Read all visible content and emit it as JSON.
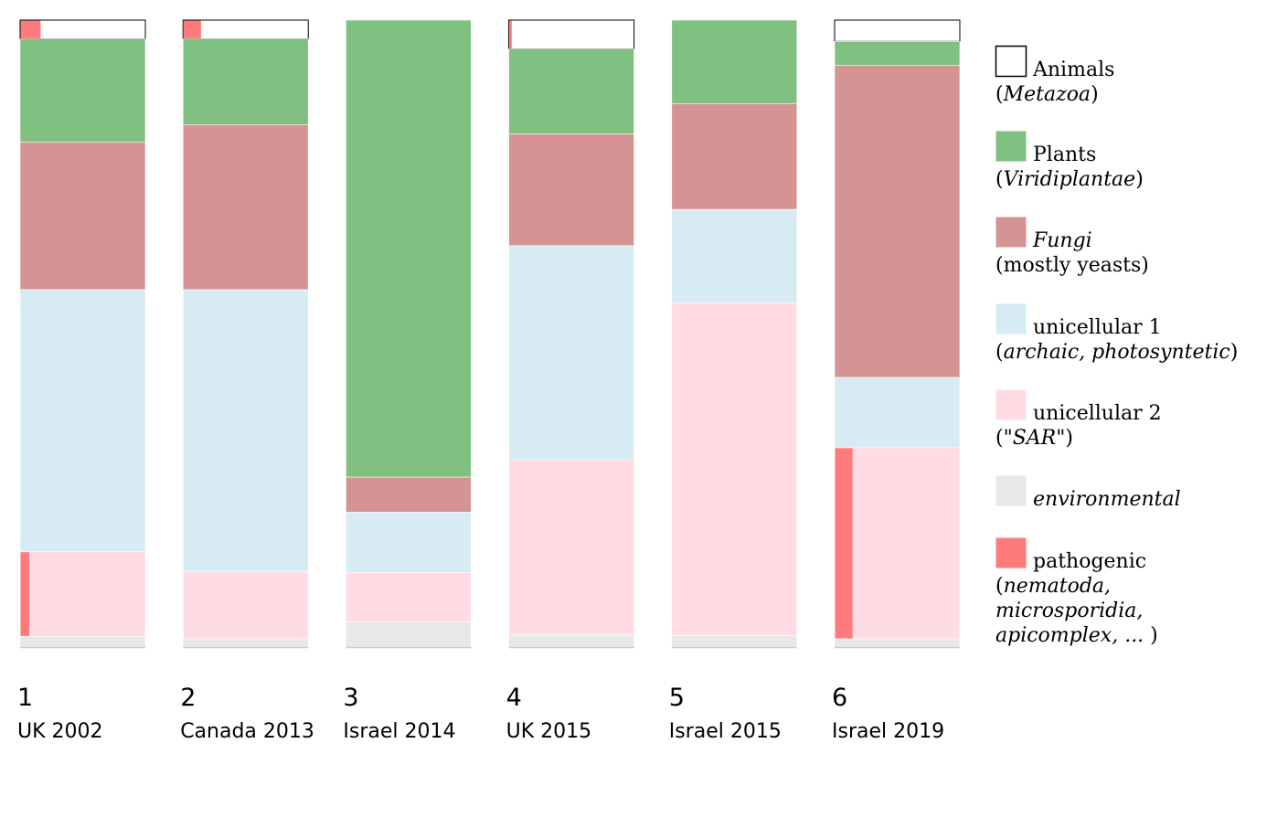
{
  "chart_data": {
    "type": "bar",
    "stacked": true,
    "normalized": true,
    "grid": false,
    "legend_position": "right",
    "title": "",
    "xlabel": "",
    "ylabel": "",
    "categories": [
      {
        "number": "1",
        "label": "UK 2002"
      },
      {
        "number": "2",
        "label": "Canada 2013"
      },
      {
        "number": "3",
        "label": "Israel 2014"
      },
      {
        "number": "4",
        "label": "UK 2015"
      },
      {
        "number": "5",
        "label": "Israel 2015"
      },
      {
        "number": "6",
        "label": "Israel 2019"
      }
    ],
    "series": [
      {
        "key": "animals",
        "color": "#ffffff",
        "values": [
          3.0,
          3.0,
          0.0,
          4.6,
          0.0,
          3.4
        ]
      },
      {
        "key": "plants",
        "color": "#80c080",
        "values": [
          16.5,
          13.7,
          72.9,
          13.5,
          13.3,
          3.8
        ]
      },
      {
        "key": "fungi",
        "color": "#d49494",
        "values": [
          23.5,
          26.4,
          5.6,
          17.8,
          16.9,
          49.8
        ]
      },
      {
        "key": "unicellular1",
        "color": "#d7ebf2",
        "values": [
          41.8,
          45.0,
          9.6,
          34.2,
          14.9,
          11.2
        ]
      },
      {
        "key": "unicellular2",
        "color": "#ffdce3",
        "values": [
          13.5,
          10.8,
          7.9,
          27.7,
          53.1,
          30.5
        ]
      },
      {
        "key": "environmental",
        "color": "#e8e8e8",
        "values": [
          1.7,
          1.3,
          4.0,
          2.0,
          1.8,
          1.3
        ]
      }
    ],
    "pathogenic": {
      "color": "#ff7a7a",
      "note": "red sub-strip drawn inside the animals or unicellular-2 segment",
      "items": [
        {
          "column": 0,
          "series": "animals",
          "fraction_of_width": 0.16
        },
        {
          "column": 0,
          "series": "unicellular2",
          "fraction_of_width": 0.07
        },
        {
          "column": 1,
          "series": "animals",
          "fraction_of_width": 0.14
        },
        {
          "column": 3,
          "series": "animals",
          "fraction_of_width": 0.02
        },
        {
          "column": 5,
          "series": "unicellular2",
          "fraction_of_width": 0.14
        }
      ]
    },
    "legend": [
      {
        "key": "animals",
        "color": "#ffffff",
        "border": "#000000",
        "lines": [
          [
            {
              "t": "Animals",
              "i": false
            }
          ],
          [
            {
              "t": "(",
              "i": false
            },
            {
              "t": "Metazoa",
              "i": true
            },
            {
              "t": ")",
              "i": false
            }
          ]
        ]
      },
      {
        "key": "plants",
        "color": "#80c080",
        "lines": [
          [
            {
              "t": "Plants",
              "i": false
            }
          ],
          [
            {
              "t": "(",
              "i": false
            },
            {
              "t": "Viridiplantae",
              "i": true
            },
            {
              "t": ")",
              "i": false
            }
          ]
        ]
      },
      {
        "key": "fungi",
        "color": "#d49494",
        "lines": [
          [
            {
              "t": "Fungi",
              "i": true
            }
          ],
          [
            {
              "t": "(mostly yeasts)",
              "i": false
            }
          ]
        ]
      },
      {
        "key": "unicellular1",
        "color": "#d7ebf2",
        "lines": [
          [
            {
              "t": "unicellular 1",
              "i": false
            }
          ],
          [
            {
              "t": "(",
              "i": false
            },
            {
              "t": "archaic, photosyntetic",
              "i": true
            },
            {
              "t": ")",
              "i": false
            }
          ]
        ]
      },
      {
        "key": "unicellular2",
        "color": "#ffdce3",
        "lines": [
          [
            {
              "t": "unicellular 2",
              "i": false
            }
          ],
          [
            {
              "t": "(\"",
              "i": false
            },
            {
              "t": "SAR",
              "i": true
            },
            {
              "t": "\")",
              "i": false
            }
          ]
        ]
      },
      {
        "key": "environmental",
        "color": "#e8e8e8",
        "lines": [
          [
            {
              "t": "environmental",
              "i": true
            }
          ]
        ]
      },
      {
        "key": "pathogenic",
        "color": "#ff7a7a",
        "lines": [
          [
            {
              "t": "pathogenic",
              "i": false
            }
          ],
          [
            {
              "t": "(",
              "i": false
            },
            {
              "t": "nematoda,",
              "i": true
            }
          ],
          [
            {
              "t": "microsporidia,",
              "i": true
            }
          ],
          [
            {
              "t": "apicomplex, ...",
              "i": true
            },
            {
              "t": " )",
              "i": false
            }
          ]
        ]
      }
    ]
  }
}
